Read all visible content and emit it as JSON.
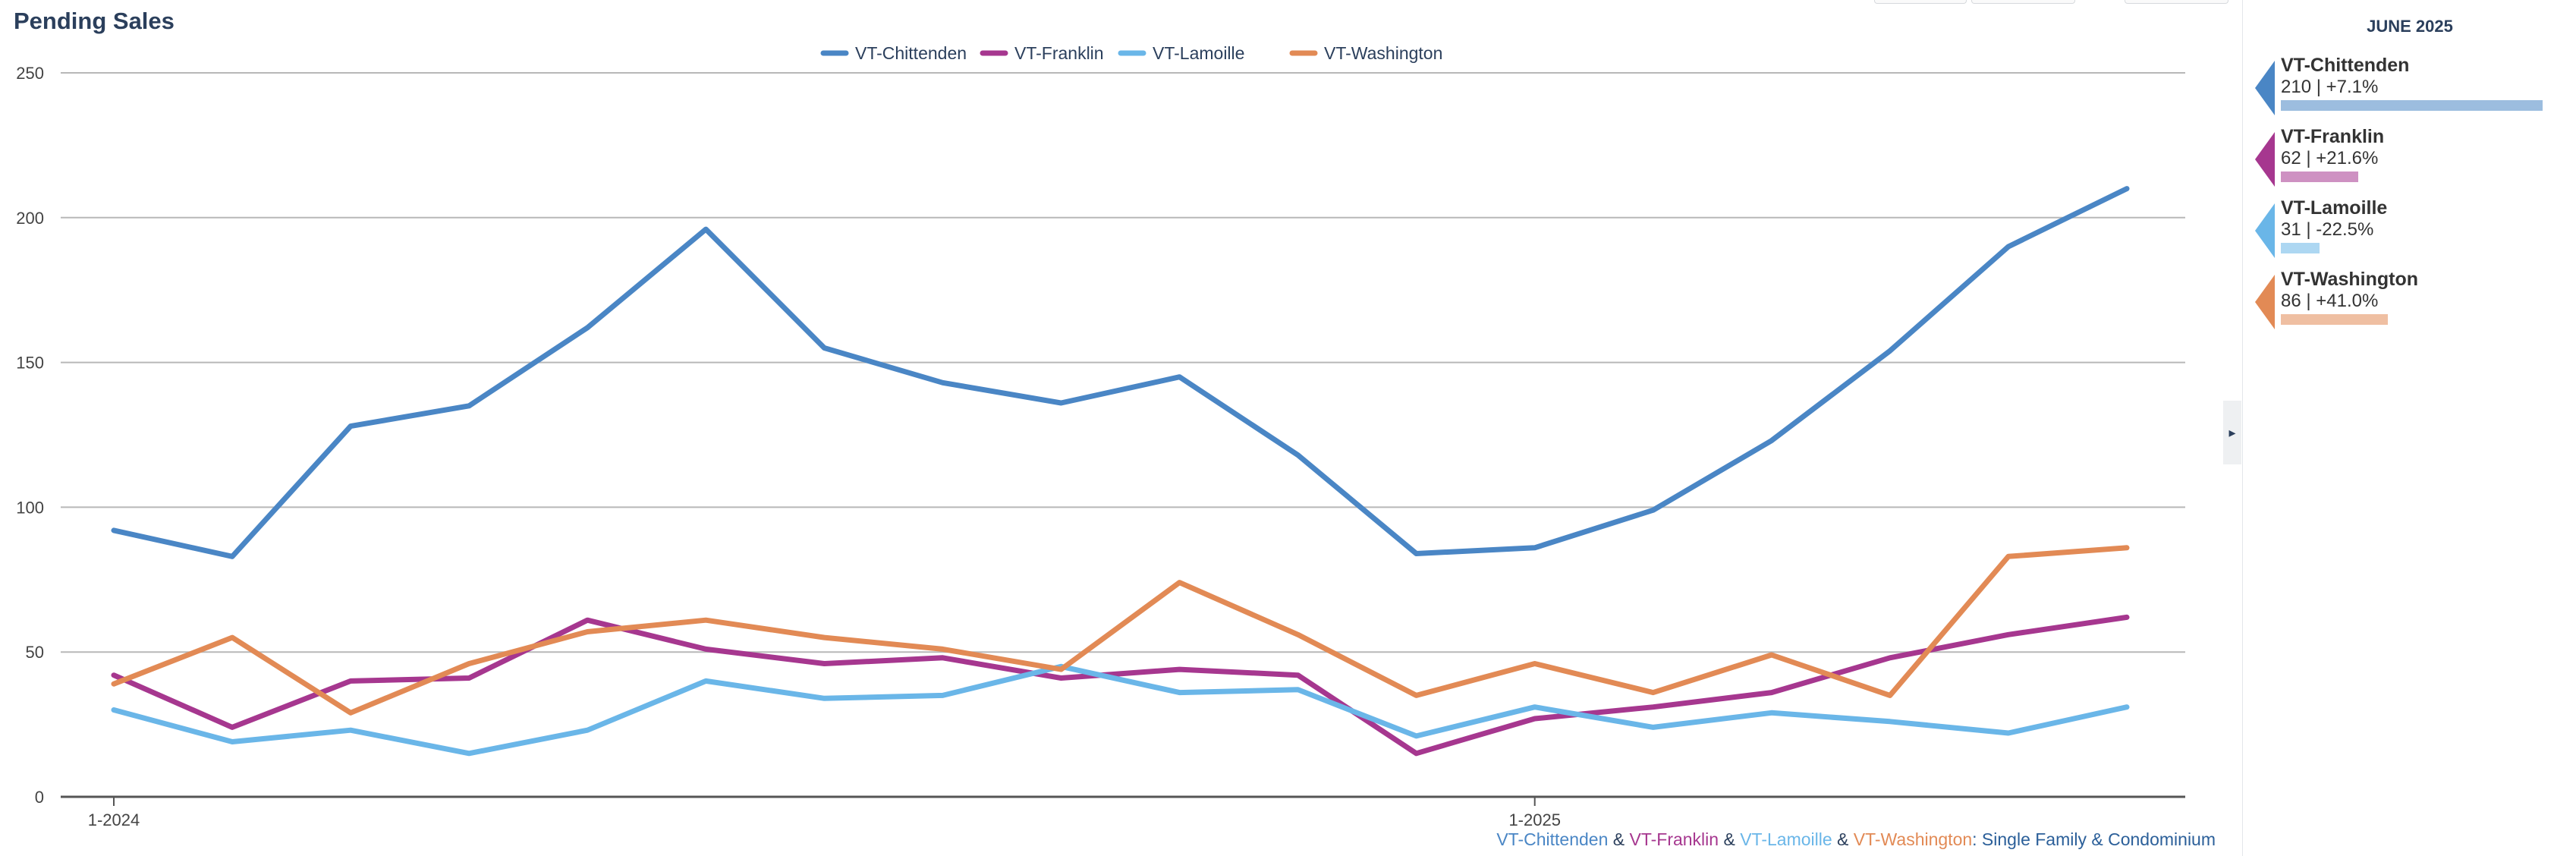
{
  "page_title": "Pending Sales",
  "caption": {
    "parts": [
      {
        "text": "VT-Chittenden",
        "color": "#4a86c5"
      },
      {
        "text": " & ",
        "color": "#2b3f5c"
      },
      {
        "text": "VT-Franklin",
        "color": "#a6378f"
      },
      {
        "text": " & ",
        "color": "#2b3f5c"
      },
      {
        "text": "VT-Lamoille",
        "color": "#6ab6e8"
      },
      {
        "text": " & ",
        "color": "#2b3f5c"
      },
      {
        "text": "VT-Washington",
        "color": "#e28a55"
      },
      {
        "text": ": Single Family & Condominium",
        "color": "#2b5f99"
      }
    ]
  },
  "sidebar": {
    "title": "JUNE 2025",
    "cards": [
      {
        "name": "VT-Chittenden",
        "value": "210 | +7.1%",
        "amount": 210,
        "color": "#4a86c5"
      },
      {
        "name": "VT-Franklin",
        "value": "62 | +21.6%",
        "amount": 62,
        "color": "#a6378f"
      },
      {
        "name": "VT-Lamoille",
        "value": "31 | -22.5%",
        "amount": 31,
        "color": "#6ab6e8"
      },
      {
        "name": "VT-Washington",
        "value": "86 | +41.0%",
        "amount": 86,
        "color": "#e28a55"
      }
    ]
  },
  "chart_data": {
    "type": "line",
    "title": "Pending Sales",
    "xlabel": "",
    "ylabel": "",
    "ylim": [
      0,
      250
    ],
    "yticks": [
      0,
      50,
      100,
      150,
      200,
      250
    ],
    "x": [
      "2024-01",
      "2024-02",
      "2024-03",
      "2024-04",
      "2024-05",
      "2024-06",
      "2024-07",
      "2024-08",
      "2024-09",
      "2024-10",
      "2024-11",
      "2024-12",
      "2025-01",
      "2025-02",
      "2025-03",
      "2025-04",
      "2025-05",
      "2025-06"
    ],
    "x_tick_labels": [
      {
        "at": "2024-01",
        "label": "1-2024"
      },
      {
        "at": "2025-01",
        "label": "1-2025"
      }
    ],
    "grid": true,
    "legend_position": "top-center",
    "series": [
      {
        "name": "VT-Chittenden",
        "color": "#4a86c5",
        "values": [
          92,
          83,
          128,
          135,
          162,
          196,
          155,
          143,
          136,
          145,
          118,
          84,
          86,
          99,
          123,
          154,
          190,
          210
        ]
      },
      {
        "name": "VT-Franklin",
        "color": "#a6378f",
        "values": [
          42,
          24,
          40,
          41,
          61,
          51,
          46,
          48,
          41,
          44,
          42,
          15,
          27,
          31,
          36,
          48,
          56,
          62
        ]
      },
      {
        "name": "VT-Lamoille",
        "color": "#6ab6e8",
        "values": [
          30,
          19,
          23,
          15,
          23,
          40,
          34,
          35,
          45,
          36,
          37,
          21,
          31,
          24,
          29,
          26,
          22,
          31
        ]
      },
      {
        "name": "VT-Washington",
        "color": "#e28a55",
        "values": [
          39,
          55,
          29,
          46,
          57,
          61,
          55,
          51,
          44,
          74,
          56,
          35,
          46,
          36,
          49,
          35,
          83,
          86
        ]
      }
    ]
  }
}
